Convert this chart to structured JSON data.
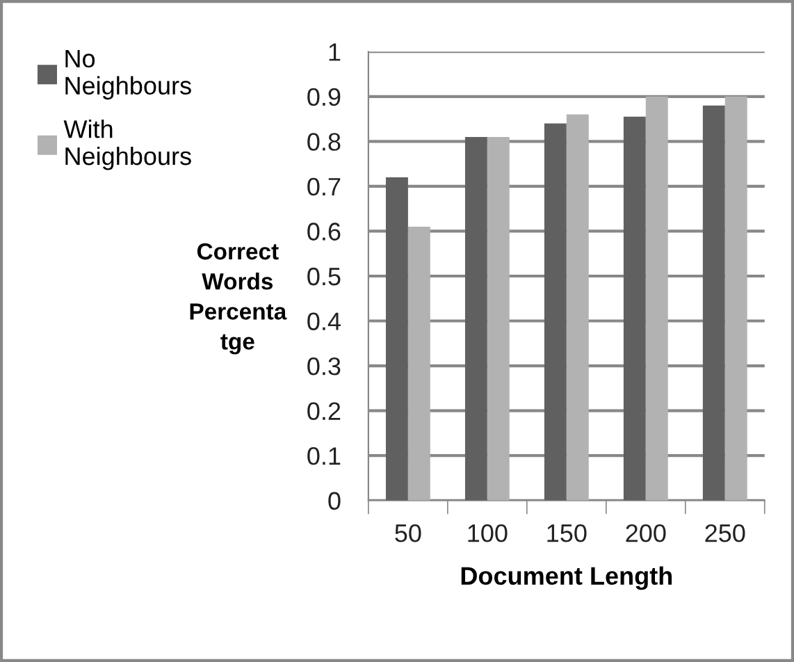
{
  "chart_data": {
    "type": "bar",
    "xlabel": "Document Length",
    "ylabel": "Correct\nWords\nPercenta\ntge",
    "categories": [
      "50",
      "100",
      "150",
      "200",
      "250"
    ],
    "series": [
      {
        "name": "No Neighbours",
        "color": "#606060",
        "values": [
          0.72,
          0.81,
          0.84,
          0.855,
          0.88
        ]
      },
      {
        "name": "With Neighbours",
        "color": "#b2b2b2",
        "values": [
          0.61,
          0.81,
          0.86,
          0.9,
          0.9
        ]
      }
    ],
    "ylim": [
      0,
      1
    ],
    "yticks": [
      0,
      0.1,
      0.2,
      0.3,
      0.4,
      0.5,
      0.6,
      0.7,
      0.8,
      0.9,
      1
    ],
    "grid": "y",
    "legend": "left"
  }
}
